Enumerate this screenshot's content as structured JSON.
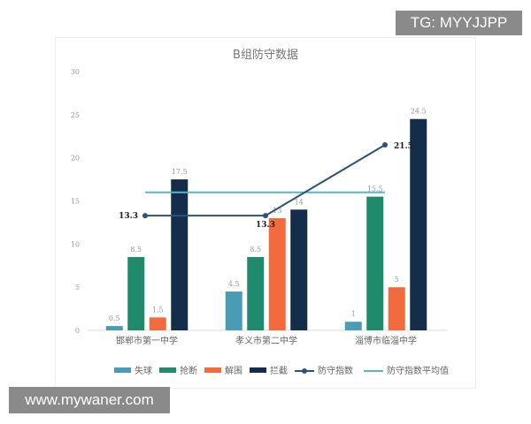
{
  "watermarks": {
    "top": "TG: MYYJJPP",
    "bottom": "www.mywaner.com"
  },
  "chart_data": {
    "type": "bar",
    "title": "B组防守数据",
    "categories": [
      "邯郸市第一中学",
      "孝义市第二中学",
      "淄博市临淄中学"
    ],
    "series": [
      {
        "name": "失球",
        "values": [
          0.5,
          4.5,
          1
        ],
        "color": "#4a9bb5"
      },
      {
        "name": "抢断",
        "values": [
          8.5,
          8.5,
          15.5
        ],
        "color": "#1f8a6c"
      },
      {
        "name": "解围",
        "values": [
          1.5,
          13,
          5
        ],
        "color": "#f26b3f"
      },
      {
        "name": "拦截",
        "values": [
          17.5,
          14,
          24.5
        ],
        "color": "#142d4a"
      }
    ],
    "lines": [
      {
        "name": "防守指数",
        "type": "line-marker",
        "values": [
          13.3,
          13.3,
          21.5
        ],
        "color": "#2a5478"
      },
      {
        "name": "防守指数平均值",
        "type": "line",
        "values": [
          16,
          16,
          16
        ],
        "color": "#5bb8c0"
      }
    ],
    "ylim": [
      0,
      30
    ],
    "yticks": [
      0,
      5,
      10,
      15,
      20,
      25,
      30
    ],
    "legend": "bottom",
    "grid": false
  }
}
